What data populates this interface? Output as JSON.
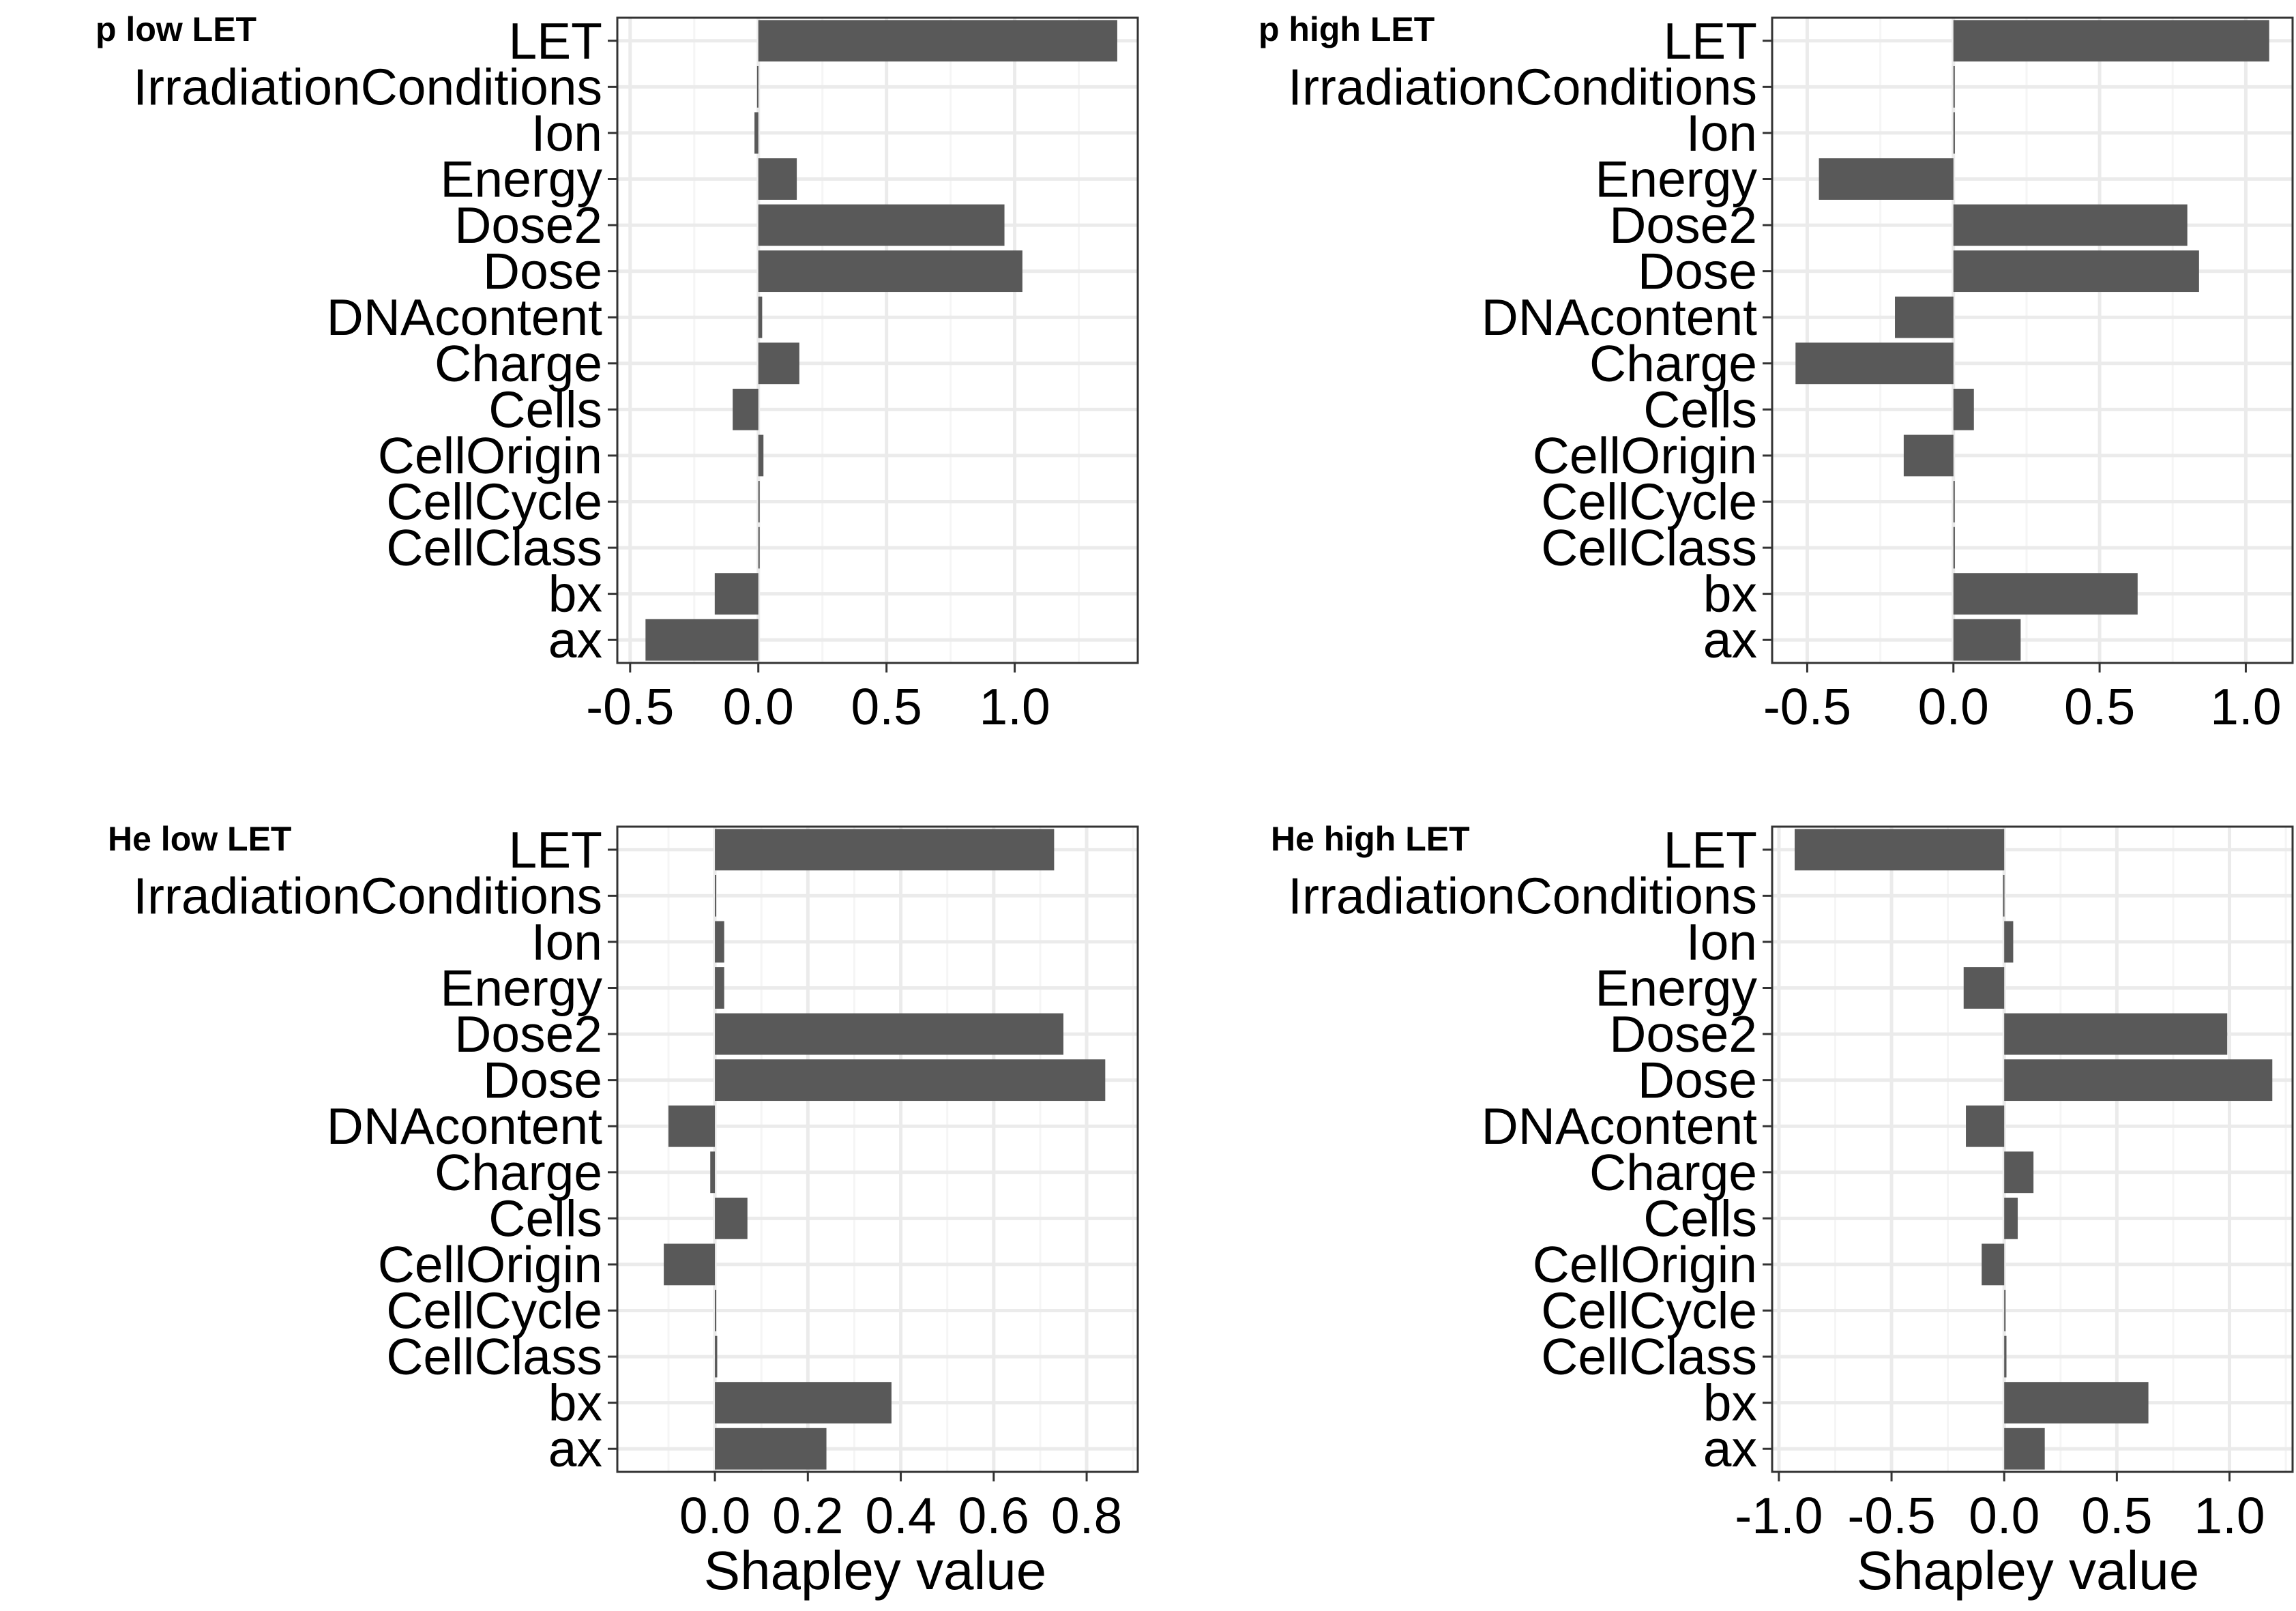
{
  "chart_data": [
    {
      "type": "bar",
      "orientation": "horizontal",
      "title": "p low LET",
      "xlabel": "",
      "ylabel": "",
      "grid": true,
      "xlim": [
        -0.55,
        1.48
      ],
      "xticks": [
        -0.5,
        0.0,
        0.5,
        1.0
      ],
      "tick_labels": [
        "-0.5",
        "0.0",
        "0.5",
        "1.0"
      ],
      "categories": [
        "LET",
        "IrradiationConditions",
        "Ion",
        "Energy",
        "Dose2",
        "Dose",
        "DNAcontent",
        "Charge",
        "Cells",
        "CellOrigin",
        "CellCycle",
        "CellClass",
        "bx",
        "ax"
      ],
      "values": [
        1.4,
        -0.005,
        -0.015,
        0.15,
        0.96,
        1.03,
        0.015,
        0.16,
        -0.1,
        0.02,
        0.0,
        0.005,
        -0.17,
        -0.44
      ]
    },
    {
      "type": "bar",
      "orientation": "horizontal",
      "title": "p high LET",
      "xlabel": "",
      "ylabel": "",
      "grid": true,
      "xlim": [
        -0.62,
        1.16
      ],
      "xticks": [
        -0.5,
        0.0,
        0.5,
        1.0
      ],
      "tick_labels": [
        "-0.5",
        "0.0",
        "0.5",
        "1.0"
      ],
      "categories": [
        "LET",
        "IrradiationConditions",
        "Ion",
        "Energy",
        "Dose2",
        "Dose",
        "DNAcontent",
        "Charge",
        "Cells",
        "CellOrigin",
        "CellCycle",
        "CellClass",
        "bx",
        "ax"
      ],
      "values": [
        1.08,
        0.0,
        0.005,
        -0.46,
        0.8,
        0.84,
        -0.2,
        -0.54,
        0.07,
        -0.17,
        0.0,
        0.005,
        0.63,
        0.23
      ]
    },
    {
      "type": "bar",
      "orientation": "horizontal",
      "title": "He low LET",
      "xlabel": "Shapley value",
      "ylabel": "",
      "grid": true,
      "xlim": [
        -0.21,
        0.91
      ],
      "xticks": [
        0.0,
        0.2,
        0.4,
        0.6,
        0.8
      ],
      "tick_labels": [
        "0.0",
        "0.2",
        "0.4",
        "0.6",
        "0.8"
      ],
      "categories": [
        "LET",
        "IrradiationConditions",
        "Ion",
        "Energy",
        "Dose2",
        "Dose",
        "DNAcontent",
        "Charge",
        "Cells",
        "CellOrigin",
        "CellCycle",
        "CellClass",
        "bx",
        "ax"
      ],
      "values": [
        0.73,
        0.0,
        0.02,
        0.02,
        0.75,
        0.84,
        -0.1,
        -0.01,
        0.07,
        -0.11,
        0.0,
        0.005,
        0.38,
        0.24
      ]
    },
    {
      "type": "bar",
      "orientation": "horizontal",
      "title": "He high LET",
      "xlabel": "Shapley value",
      "ylabel": "",
      "grid": true,
      "xlim": [
        -1.03,
        1.28
      ],
      "xticks": [
        -1.0,
        -0.5,
        0.0,
        0.5,
        1.0
      ],
      "tick_labels": [
        "-1.0",
        "-0.5",
        "0.0",
        "0.5",
        "1.0"
      ],
      "categories": [
        "LET",
        "IrradiationConditions",
        "Ion",
        "Energy",
        "Dose2",
        "Dose",
        "DNAcontent",
        "Charge",
        "Cells",
        "CellOrigin",
        "CellCycle",
        "CellClass",
        "bx",
        "ax"
      ],
      "values": [
        -0.93,
        -0.005,
        0.04,
        -0.18,
        0.99,
        1.19,
        -0.17,
        0.13,
        0.06,
        -0.1,
        0.0,
        0.01,
        0.64,
        0.18
      ]
    }
  ],
  "colors": {
    "bar": "#595959",
    "grid_major": "#ebebeb",
    "grid_minor": "#f5f5f5",
    "panel_border": "#333333",
    "background": "#ffffff",
    "text": "#000000",
    "tick": "#333333"
  }
}
